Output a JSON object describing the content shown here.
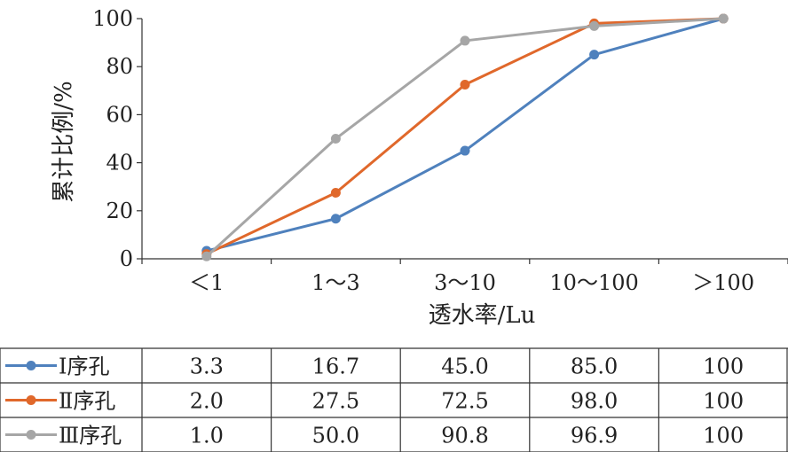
{
  "chart_data": {
    "type": "line",
    "categories": [
      "＜1",
      "1～3",
      "3～10",
      "10～100",
      "＞100"
    ],
    "xlabel": "透水率/Lu",
    "ylabel": "累计比例/%",
    "ylim": [
      0,
      100
    ],
    "yticks": [
      0,
      20,
      40,
      60,
      80,
      100
    ],
    "grid": false,
    "legend": "data-table-below",
    "series": [
      {
        "name": "Ⅰ序孔",
        "color": "#4f81bd",
        "values": [
          3.3,
          16.7,
          45.0,
          85.0,
          100
        ],
        "table_values": [
          "3.3",
          "16.7",
          "45.0",
          "85.0",
          "100"
        ]
      },
      {
        "name": "Ⅱ序孔",
        "color": "#e0682b",
        "values": [
          2.0,
          27.5,
          72.5,
          98.0,
          100
        ],
        "table_values": [
          "2.0",
          "27.5",
          "72.5",
          "98.0",
          "100"
        ]
      },
      {
        "name": "Ⅲ序孔",
        "color": "#a6a6a6",
        "values": [
          1.0,
          50.0,
          90.8,
          96.9,
          100
        ],
        "table_values": [
          "1.0",
          "50.0",
          "90.8",
          "96.9",
          "100"
        ]
      }
    ]
  }
}
